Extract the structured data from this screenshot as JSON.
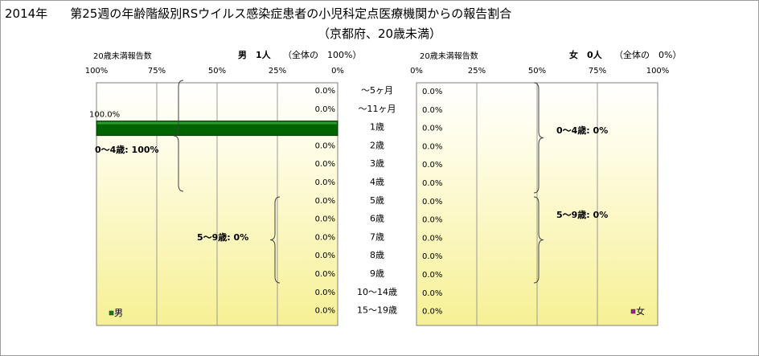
{
  "title": {
    "year": "2014年",
    "main": "第25週の年齢階級別RSウイルス感染症患者の小児科定点医療機関からの報告割合"
  },
  "subtitle": "（京都府、20歳未満）",
  "left_panel": {
    "axis_title": "20歳未満報告数",
    "sex_label": "男",
    "count_label": "1人",
    "share_label": "（全体の　100%）",
    "ticks": [
      "100%",
      "75%",
      "50%",
      "25%",
      "0%"
    ],
    "legend_label": "男",
    "group_labels": [
      "0～4歳: 100%",
      "5～9歳: 0%"
    ],
    "bar_value_label": "100.0%"
  },
  "right_panel": {
    "axis_title": "20歳未満報告数",
    "sex_label": "女",
    "count_label": "0人",
    "share_label": "（全体の　0%）",
    "ticks": [
      "0%",
      "25%",
      "50%",
      "75%",
      "100%"
    ],
    "legend_label": "女",
    "group_labels": [
      "0～4歳: 0%",
      "5～9歳: 0%"
    ]
  },
  "colors": {
    "male_bar": "#006400",
    "male_legend": "#1a7a1a",
    "female_legend": "#a020a0",
    "panel_fill_top": "#fffde8",
    "panel_fill_bottom": "#f7f29a"
  },
  "chart_data": [
    {
      "type": "bar",
      "title": "男　1人",
      "xlabel": "20歳未満報告数",
      "categories": [
        "～5ヶ月",
        "～11ヶ月",
        "1歳",
        "2歳",
        "3歳",
        "4歳",
        "5歳",
        "6歳",
        "7歳",
        "8歳",
        "9歳",
        "10～14歳",
        "15～19歳"
      ],
      "series": [
        {
          "name": "男",
          "values": [
            0.0,
            0.0,
            100.0,
            0.0,
            0.0,
            0.0,
            0.0,
            0.0,
            0.0,
            0.0,
            0.0,
            0.0,
            0.0
          ]
        }
      ],
      "value_labels": [
        "0.0%",
        "0.0%",
        "100.0%",
        "0.0%",
        "0.0%",
        "0.0%",
        "0.0%",
        "0.0%",
        "0.0%",
        "0.0%",
        "0.0%",
        "0.0%",
        "0.0%"
      ],
      "xlim": [
        0,
        100
      ],
      "grid": true
    },
    {
      "type": "bar",
      "title": "女　0人",
      "xlabel": "20歳未満報告数",
      "categories": [
        "～5ヶ月",
        "～11ヶ月",
        "1歳",
        "2歳",
        "3歳",
        "4歳",
        "5歳",
        "6歳",
        "7歳",
        "8歳",
        "9歳",
        "10～14歳",
        "15～19歳"
      ],
      "series": [
        {
          "name": "女",
          "values": [
            0.0,
            0.0,
            0.0,
            0.0,
            0.0,
            0.0,
            0.0,
            0.0,
            0.0,
            0.0,
            0.0,
            0.0,
            0.0
          ]
        }
      ],
      "value_labels": [
        "0.0%",
        "0.0%",
        "0.0%",
        "0.0%",
        "0.0%",
        "0.0%",
        "0.0%",
        "0.0%",
        "0.0%",
        "0.0%",
        "0.0%",
        "0.0%",
        "0.0%"
      ],
      "xlim": [
        0,
        100
      ],
      "grid": true
    }
  ]
}
